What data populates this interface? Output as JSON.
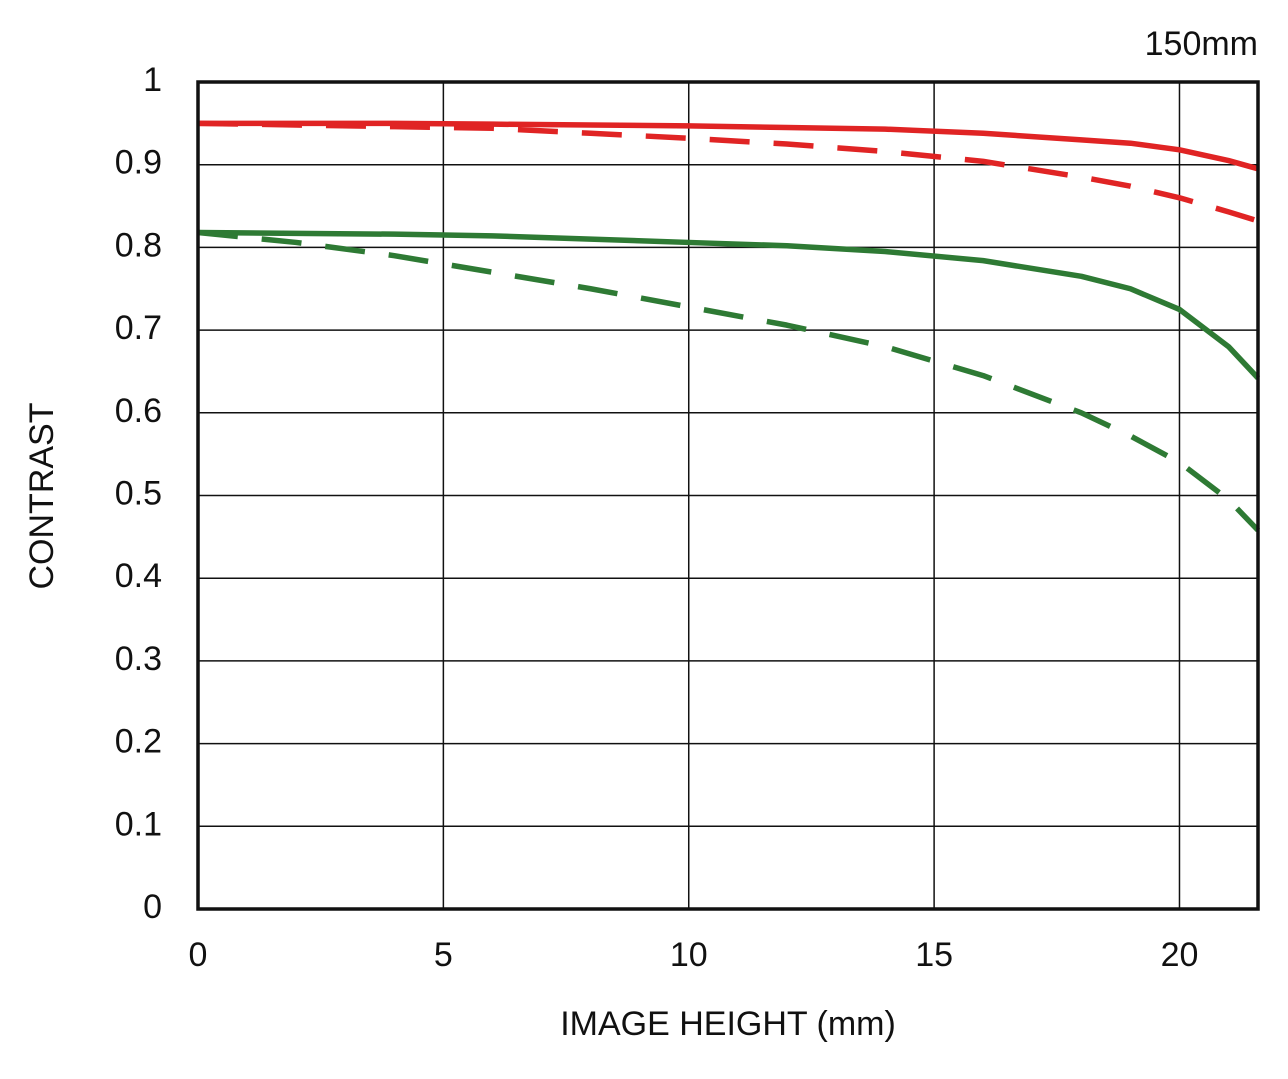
{
  "chart_data": {
    "type": "line",
    "title": "150mm",
    "x_label": "IMAGE HEIGHT (mm)",
    "y_label": "CONTRAST",
    "x": [
      0,
      2,
      4,
      6,
      8,
      10,
      12,
      14,
      16,
      18,
      19,
      20,
      21,
      21.6
    ],
    "series": [
      {
        "color": "#e02424",
        "style": "solid",
        "values": [
          0.95,
          0.95,
          0.95,
          0.949,
          0.948,
          0.947,
          0.945,
          0.943,
          0.938,
          0.93,
          0.926,
          0.918,
          0.905,
          0.895
        ]
      },
      {
        "color": "#e02424",
        "style": "dashed",
        "values": [
          0.95,
          0.948,
          0.946,
          0.944,
          0.938,
          0.932,
          0.925,
          0.916,
          0.904,
          0.885,
          0.874,
          0.86,
          0.843,
          0.832
        ]
      },
      {
        "color": "#2e7a34",
        "style": "solid",
        "values": [
          0.818,
          0.817,
          0.816,
          0.814,
          0.81,
          0.806,
          0.802,
          0.795,
          0.784,
          0.765,
          0.75,
          0.725,
          0.68,
          0.642
        ]
      },
      {
        "color": "#2e7a34",
        "style": "dashed",
        "values": [
          0.818,
          0.806,
          0.79,
          0.77,
          0.75,
          0.728,
          0.706,
          0.68,
          0.645,
          0.6,
          0.572,
          0.54,
          0.495,
          0.458
        ]
      }
    ],
    "xlim": [
      0,
      21.6
    ],
    "ylim": [
      0,
      1
    ],
    "xticks": [
      0,
      5,
      10,
      15,
      20
    ],
    "yticks": [
      0,
      0.1,
      0.2,
      0.3,
      0.4,
      0.5,
      0.6,
      0.7,
      0.8,
      0.9,
      1
    ],
    "grid": true
  }
}
